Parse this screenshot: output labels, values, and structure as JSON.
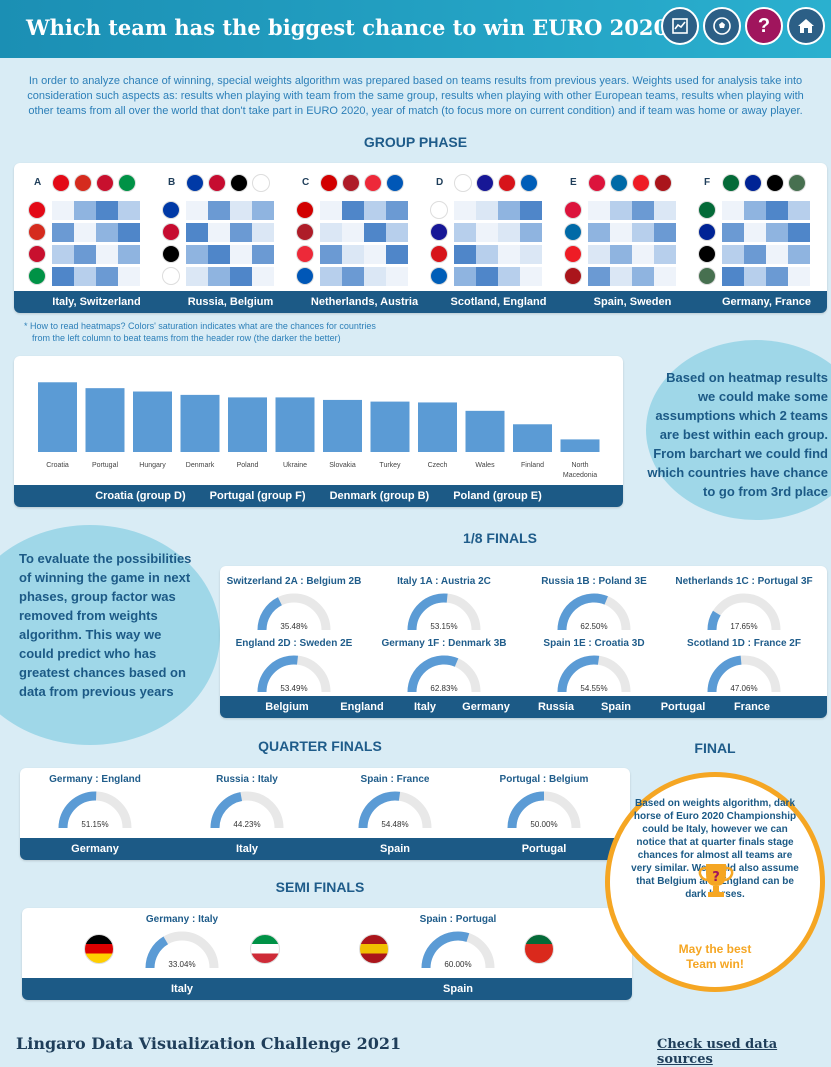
{
  "header": {
    "title": "Which team has the biggest chance to win EURO 2020?",
    "icons": [
      "chart-icon",
      "soccer-ball-icon",
      "question-icon",
      "home-icon"
    ]
  },
  "intro": "In order to analyze chance of winning, special weights algorithm was prepared based on teams results from previous years. Weights used for analysis take into consideration such aspects as: results when playing with team from the same group, results when playing with other European teams, results when playing with other teams from all over the world that don't take part in EURO 2020, year of match (to focus more on current condition) and if team was home or away player.",
  "group_phase": {
    "title": "GROUP PHASE",
    "groups": [
      {
        "letter": "A",
        "winners": "Italy, Switzerland"
      },
      {
        "letter": "B",
        "winners": "Russia, Belgium"
      },
      {
        "letter": "C",
        "winners": "Netherlands, Austria"
      },
      {
        "letter": "D",
        "winners": "Scotland, England"
      },
      {
        "letter": "E",
        "winners": "Spain, Sweden"
      },
      {
        "letter": "F",
        "winners": "Germany, France"
      }
    ],
    "note_line1": "* How to read heatmaps? Colors' saturation indicates what are the chances for countries",
    "note_line2": "from the left column to beat teams from the header row (the darker the better)"
  },
  "chart_data": {
    "type": "bar",
    "categories": [
      "Croatia",
      "Portugal",
      "Hungary",
      "Denmark",
      "Poland",
      "Ukraine",
      "Slovakia",
      "Turkey",
      "Czech",
      "Wales",
      "Finland",
      "North Macedonia"
    ],
    "values": [
      83,
      76,
      72,
      68,
      65,
      65,
      62,
      60,
      59,
      49,
      33,
      15
    ],
    "ylim": [
      0,
      100
    ],
    "footer": [
      "Croatia (group D)",
      "Portugal (group F)",
      "Denmark (group B)",
      "Poland (group E)"
    ]
  },
  "bubble1": "Based on heatmap results we could make some assumptions which 2 teams are best within each group. From barchart we could find which countries have chance to go from 3rd place",
  "bubble2": "To evaluate the possibilities of winning the game in next phases, group factor was removed from weights algorithm. This way we could predict who has greatest chances based on data from previous years",
  "round16": {
    "title": "1/8 FINALS",
    "matches": [
      {
        "label": "Switzerland 2A : Belgium 2B",
        "value": "35.48%",
        "pct": 35.48
      },
      {
        "label": "Italy 1A : Austria 2C",
        "value": "53.15%",
        "pct": 53.15
      },
      {
        "label": "Russia 1B : Poland 3E",
        "value": "62.50%",
        "pct": 62.5
      },
      {
        "label": "Netherlands 1C : Portugal 3F",
        "value": "17.65%",
        "pct": 17.65
      },
      {
        "label": "England 2D : Sweden 2E",
        "value": "53.49%",
        "pct": 53.49
      },
      {
        "label": "Germany 1F : Denmark 3B",
        "value": "62.83%",
        "pct": 62.83
      },
      {
        "label": "Spain 1E : Croatia 3D",
        "value": "54.55%",
        "pct": 54.55
      },
      {
        "label": "Scotland 1D : France 2F",
        "value": "47.06%",
        "pct": 47.06
      }
    ],
    "winners": [
      "Belgium",
      "England",
      "Italy",
      "Germany",
      "Russia",
      "Spain",
      "Portugal",
      "France"
    ]
  },
  "quarter": {
    "title": "QUARTER FINALS",
    "matches": [
      {
        "label": "Germany : England",
        "value": "51.15%",
        "pct": 51.15
      },
      {
        "label": "Russia : Italy",
        "value": "44.23%",
        "pct": 44.23
      },
      {
        "label": "Spain : France",
        "value": "54.48%",
        "pct": 54.48
      },
      {
        "label": "Portugal : Belgium",
        "value": "50.00%",
        "pct": 50
      }
    ],
    "winners": [
      "Germany",
      "Italy",
      "Spain",
      "Portugal"
    ]
  },
  "semi": {
    "title": "SEMI FINALS",
    "matches": [
      {
        "label": "Germany : Italy",
        "value": "33.04%",
        "pct": 33.04
      },
      {
        "label": "Spain : Portugal",
        "value": "60.00%",
        "pct": 60
      }
    ],
    "winners": [
      "Italy",
      "Spain"
    ]
  },
  "final": {
    "title": "FINAL",
    "text1": "Based on weights algorithm, dark horse of Euro 2020 Championship could be Italy, however we can notice that at quarter finals stage chances for almost all teams are very similar. We could also assume that Belgium and England can be dark horses.",
    "text2": "May the best Team win!"
  },
  "footer": {
    "title": "Lingaro Data Visualization Challenge 2021",
    "link": "Check used data sources"
  },
  "colors": {
    "accent": "#1c5a86",
    "bar": "#5b9bd5",
    "bubble": "#9fd7e8",
    "final_border": "#f5a623"
  }
}
